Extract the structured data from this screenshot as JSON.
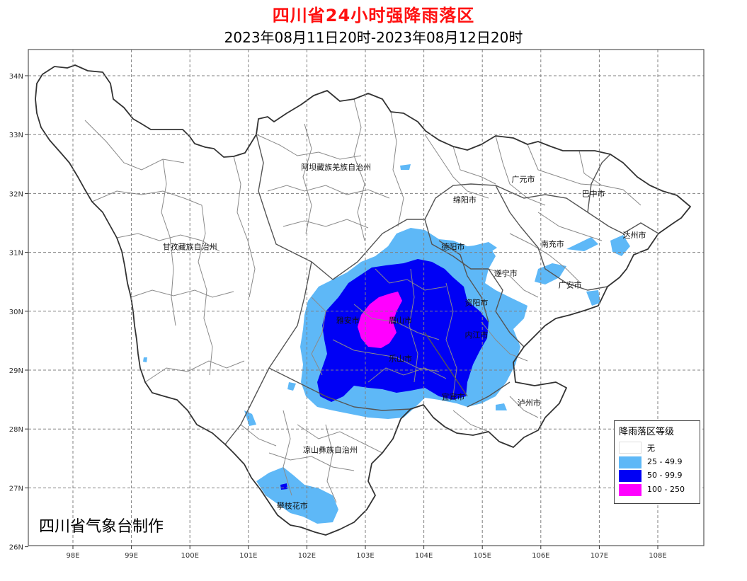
{
  "title": "四川省24小时强降雨落区",
  "subtitle": "2023年08月11日20时-2023年08月12日20时",
  "credit": "四川省气象台制作",
  "axes": {
    "lon_ticks": [
      "98E",
      "99E",
      "100E",
      "101E",
      "102E",
      "103E",
      "104E",
      "105E",
      "106E",
      "107E",
      "108E"
    ],
    "lat_ticks": [
      "34N",
      "33N",
      "32N",
      "31N",
      "30N",
      "29N",
      "28N",
      "27N",
      "26N"
    ]
  },
  "place_labels": [
    {
      "name": "阿坝藏族羌族自治州",
      "lon": 102.5,
      "lat": 32.4
    },
    {
      "name": "广元市",
      "lon": 105.7,
      "lat": 32.2
    },
    {
      "name": "巴中市",
      "lon": 106.9,
      "lat": 31.95
    },
    {
      "name": "绵阳市",
      "lon": 104.7,
      "lat": 31.85
    },
    {
      "name": "德阳市",
      "lon": 104.5,
      "lat": 31.05
    },
    {
      "name": "南充市",
      "lon": 106.2,
      "lat": 31.1
    },
    {
      "name": "达州市",
      "lon": 107.6,
      "lat": 31.25
    },
    {
      "name": "甘孜藏族自治州",
      "lon": 100.0,
      "lat": 31.05
    },
    {
      "name": "遂宁市",
      "lon": 105.4,
      "lat": 30.6
    },
    {
      "name": "广安市",
      "lon": 106.5,
      "lat": 30.4
    },
    {
      "name": "资阳市",
      "lon": 104.9,
      "lat": 30.1
    },
    {
      "name": "雅安市",
      "lon": 102.7,
      "lat": 29.8
    },
    {
      "name": "眉山市",
      "lon": 103.6,
      "lat": 29.8
    },
    {
      "name": "内江市",
      "lon": 104.9,
      "lat": 29.55
    },
    {
      "name": "乐山市",
      "lon": 103.6,
      "lat": 29.15
    },
    {
      "name": "宜宾市",
      "lon": 104.5,
      "lat": 28.5
    },
    {
      "name": "泸州市",
      "lon": 105.8,
      "lat": 28.4
    },
    {
      "name": "凉山彝族自治州",
      "lon": 102.4,
      "lat": 27.6
    },
    {
      "name": "攀枝花市",
      "lon": 101.75,
      "lat": 26.65
    }
  ],
  "legend": {
    "title": "降雨落区等级",
    "items": [
      {
        "label": "无",
        "color": "#ffffff"
      },
      {
        "label": "25 - 49.9",
        "color": "#5eb8f7"
      },
      {
        "label": "50 - 99.9",
        "color": "#0000f5"
      },
      {
        "label": "100 - 250",
        "color": "#ff00ff"
      }
    ]
  },
  "colors": {
    "title": "#ff1010",
    "frame": "#555555",
    "grid": "#808080",
    "province_border": "#333333",
    "county_border": "#8a8a8a"
  }
}
